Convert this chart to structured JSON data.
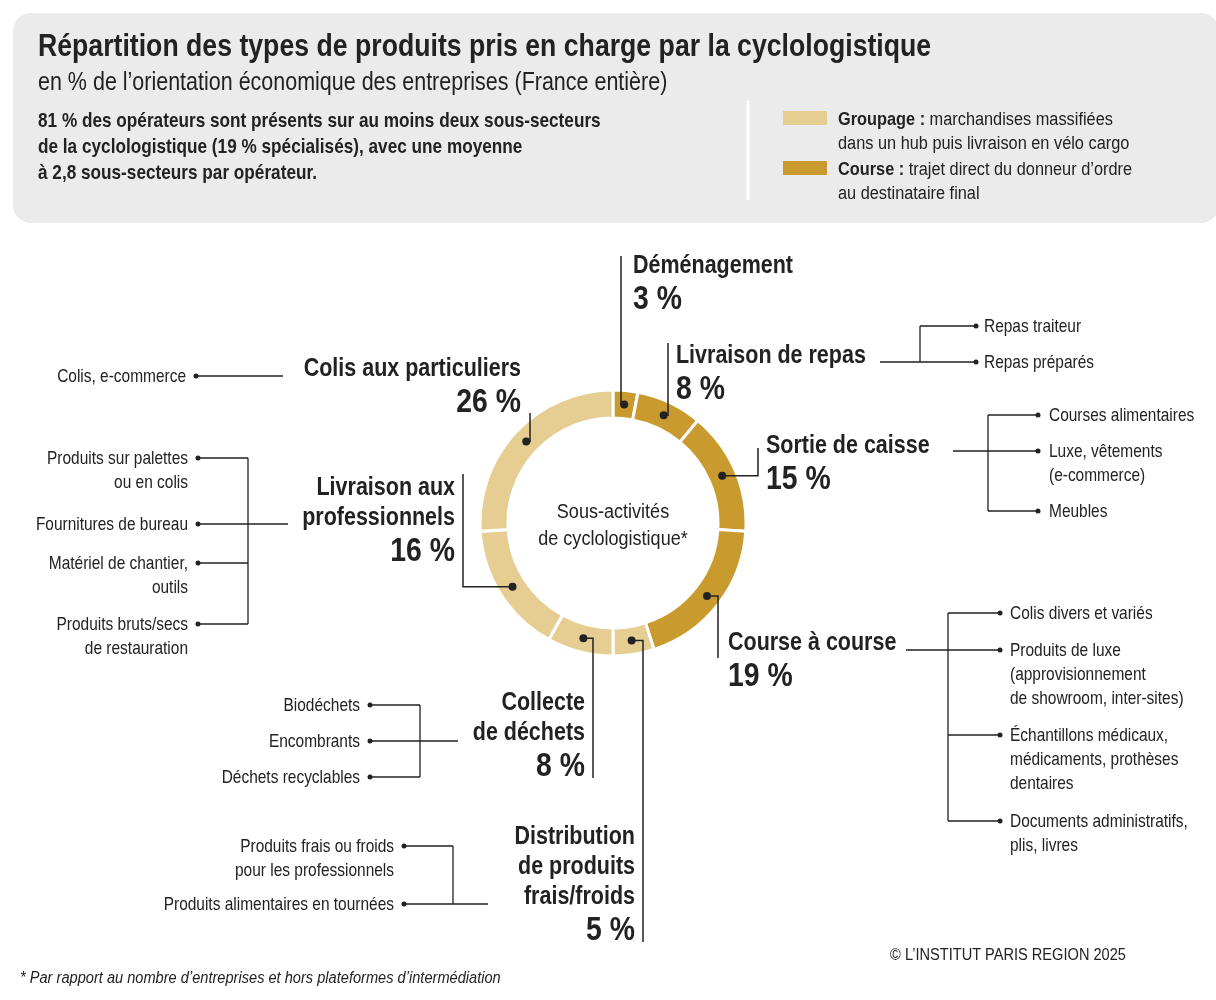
{
  "chart_data": {
    "type": "donut",
    "title": "Répartition des types de produits pris en charge par la cyclologistique",
    "subtitle": "en % de l’orientation économique des entreprises (France entière)",
    "categories": [
      "Déménagement",
      "Livraison de repas",
      "Sortie de caisse",
      "Course à course",
      "Distribution de produits frais/froids",
      "Collecte de déchets",
      "Livraison aux professionnels",
      "Colis aux particuliers"
    ],
    "values": [
      3,
      8,
      15,
      19,
      5,
      8,
      16,
      26
    ],
    "value_labels": [
      "3 %",
      "8 %",
      "15 %",
      "19 %",
      "5 %",
      "8 %",
      "16 %",
      "26 %"
    ],
    "colors": [
      "#c99a2e",
      "#c99a2e",
      "#c99a2e",
      "#c99a2e",
      "#e6cd92",
      "#e6cd92",
      "#e6cd92",
      "#e6cd92"
    ],
    "annotations": [
      "81 % des opérateurs sont présents sur au moins deux sous-secteurs de la cyclologistique (19 % spécialisés), avec une moyenne à 2,8 sous-secteurs par opérateur.",
      "Groupage : marchandises massifiées dans un hub puis livraison en vélo cargo",
      "Course : trajet direct du donneur d’ordre au destinataire final",
      "Sous-activités de cyclologistique*",
      "* Par rapport au nombre d’entreprises et hors plateformes d’intermédiation",
      "© L’INSTITUT PARIS REGION 2025",
      {
        "text": "Repas traiteur",
        "x": "Livraison de repas"
      },
      {
        "text": "Repas préparés",
        "x": "Livraison de repas"
      },
      {
        "text": "Courses alimentaires",
        "x": "Sortie de caisse"
      },
      {
        "text": "Luxe, vêtements (e-commerce)",
        "x": "Sortie de caisse"
      },
      {
        "text": "Meubles",
        "x": "Sortie de caisse"
      },
      {
        "text": "Colis divers et variés",
        "x": "Course à course"
      },
      {
        "text": "Produits de luxe (approvisionnement de showroom, inter-sites)",
        "x": "Course à course"
      },
      {
        "text": "Échantillons médicaux, médicaments, prothèses dentaires",
        "x": "Course à course"
      },
      {
        "text": "Documents administratifs, plis, livres",
        "x": "Course à course"
      },
      {
        "text": "Produits frais ou froids pour les professionnels",
        "x": "Distribution de produits frais/froids"
      },
      {
        "text": "Produits alimentaires en tournées",
        "x": "Distribution de produits frais/froids"
      },
      {
        "text": "Biodéchets",
        "x": "Collecte de déchets"
      },
      {
        "text": "Encombrants",
        "x": "Collecte de déchets"
      },
      {
        "text": "Déchets recyclables",
        "x": "Collecte de déchets"
      },
      {
        "text": "Produits sur palettes ou en colis",
        "x": "Livraison aux professionnels"
      },
      {
        "text": "Fournitures de bureau",
        "x": "Livraison aux professionnels"
      },
      {
        "text": "Matériel de chantier, outils",
        "x": "Livraison aux professionnels"
      },
      {
        "text": "Produits bruts/secs de restauration",
        "x": "Livraison aux professionnels"
      },
      {
        "text": "Colis, e-commerce",
        "x": "Colis aux particuliers"
      }
    ]
  }
}
